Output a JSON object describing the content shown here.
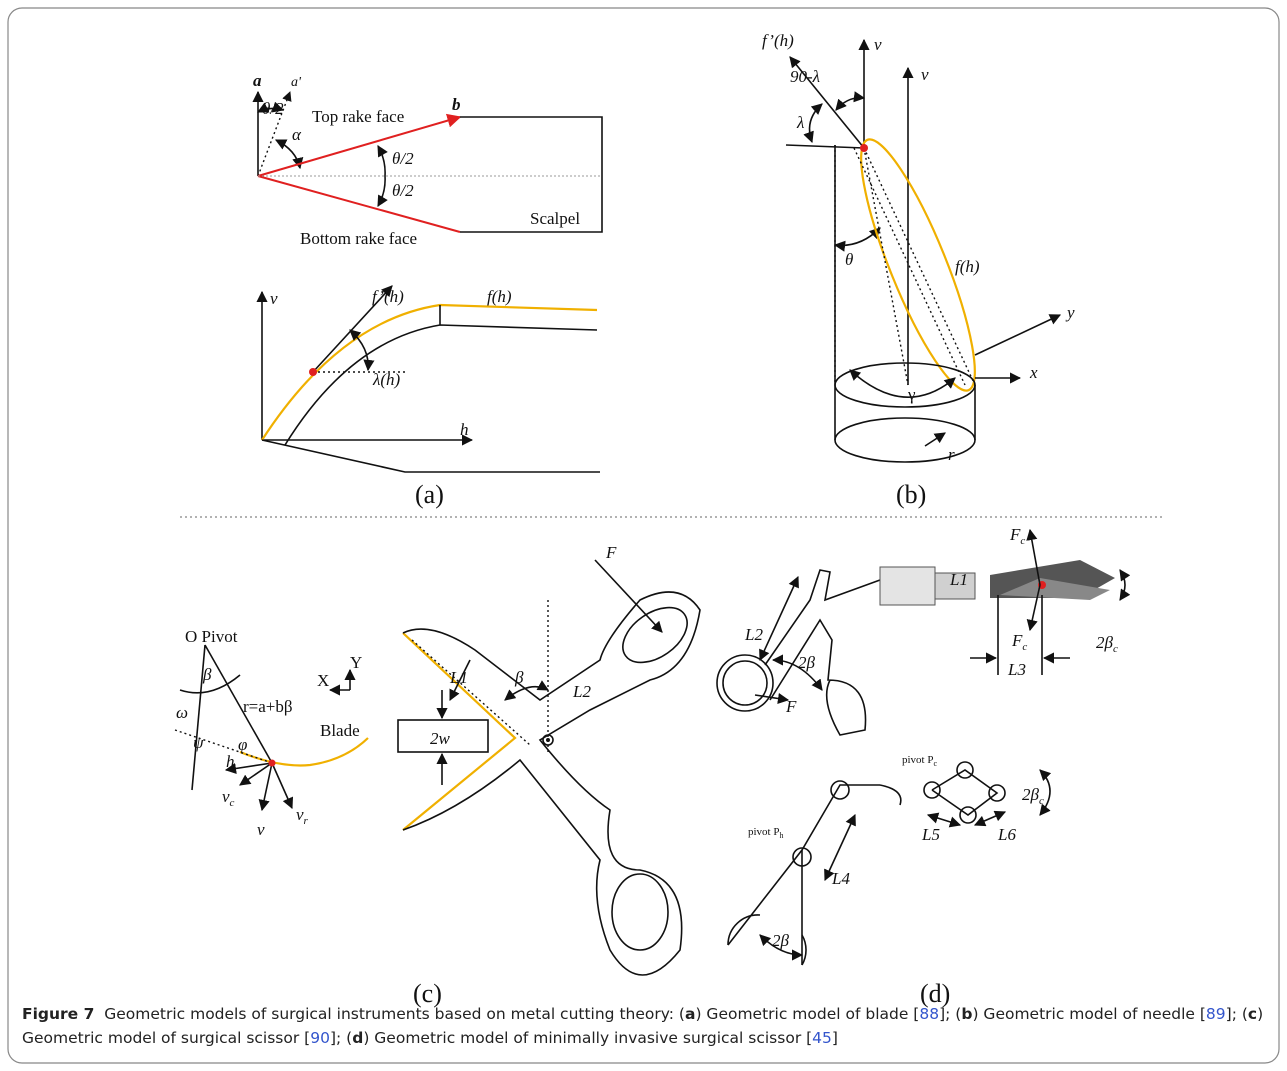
{
  "panel_a": {
    "label": "(a)",
    "texts": [
      "a",
      "a'",
      "θ/2",
      "α",
      "Top rake face",
      "b",
      "θ/2",
      "θ/2",
      "Scalpel",
      "Bottom rake face",
      "f’(h)",
      "f(h)",
      "v",
      "λ(h)",
      "h"
    ]
  },
  "panel_b": {
    "label": "(b)",
    "texts": [
      "f’(h)",
      "v",
      "90-λ",
      "v",
      "λ",
      "θ",
      "f(h)",
      "y",
      "x",
      "γ",
      "r"
    ]
  },
  "panel_c": {
    "label": "(c)",
    "texts": [
      "O Pivot",
      "β",
      "X",
      "Y",
      "ω",
      "r=a+bβ",
      "Blade",
      "ψ",
      "φ",
      "h",
      "v",
      "c",
      "v",
      "v",
      "r",
      "F",
      "L1",
      "β",
      "L2",
      "2w"
    ]
  },
  "panel_d": {
    "label": "(d)",
    "texts": [
      "L1",
      "F",
      "c",
      "L2",
      "2β",
      "c",
      "2β",
      "F",
      "c",
      "L3",
      "F",
      "pivot P",
      "c",
      "pivot P",
      "h",
      "2β",
      "c",
      "L5",
      "L6",
      "L4",
      "2β"
    ]
  },
  "caption": {
    "segments": [
      "Figure 7",
      "Geometric models of surgical instruments based on metal cutting theory: (",
      "a",
      ") Geometric model of blade [",
      "88",
      "]; (",
      "b",
      ") Geometric model of needle [",
      "89",
      "]; (",
      "c",
      ") Geometric model of surgical scissor [",
      "90",
      "]; (",
      "d",
      ") Geometric model of minimally invasive surgical scissor [",
      "45",
      "]"
    ]
  }
}
